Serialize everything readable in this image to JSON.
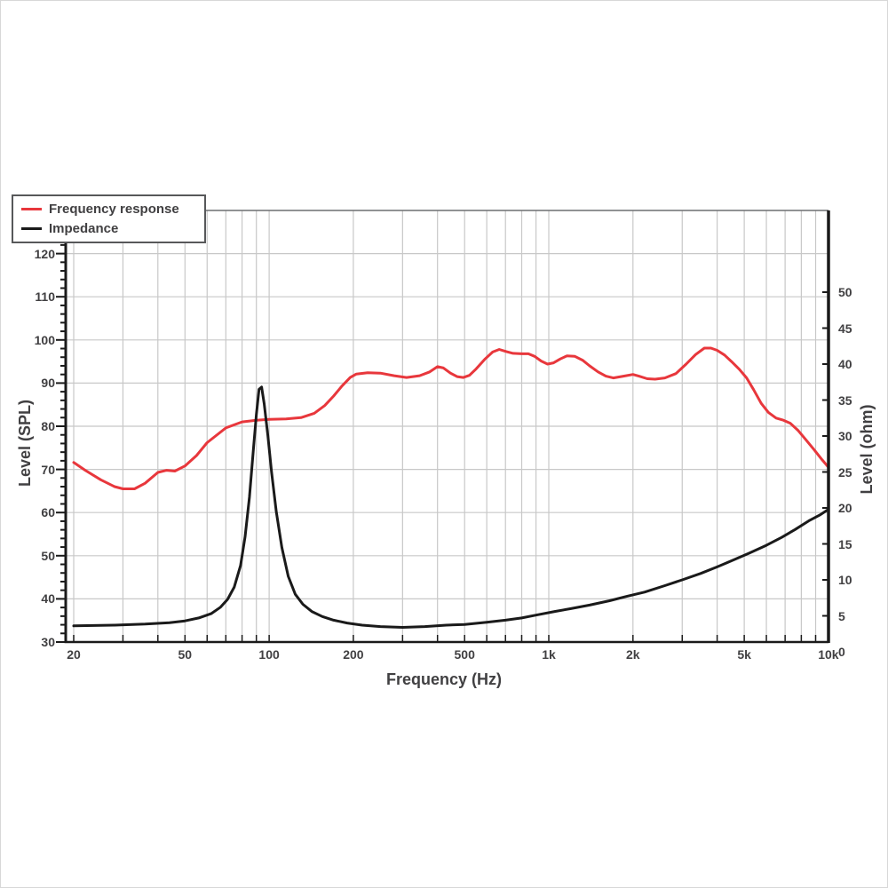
{
  "colors": {
    "frequency_response": "#e8373c",
    "impedance": "#1a1a1a",
    "grid": "#c8c8c8",
    "spine": "#1a1a1a",
    "top_frame": "#6d6e71",
    "text": "#414042"
  },
  "legend": {
    "items": [
      {
        "label": "Frequency response"
      },
      {
        "label": "Impedance"
      }
    ]
  },
  "chart_data": {
    "type": "line",
    "x_axis": {
      "label": "Frequency (Hz)",
      "scale": "log",
      "min": 20,
      "max": 10000,
      "tick_labels": [
        "20",
        "50",
        "100",
        "200",
        "500",
        "1k",
        "2k",
        "5k",
        "10k"
      ],
      "tick_values": [
        20,
        50,
        100,
        200,
        500,
        1000,
        2000,
        5000,
        10000
      ],
      "grid_values": [
        20,
        30,
        40,
        50,
        60,
        70,
        80,
        90,
        100,
        200,
        300,
        400,
        500,
        600,
        700,
        800,
        900,
        1000,
        2000,
        3000,
        4000,
        5000,
        6000,
        7000,
        8000,
        9000,
        10000
      ],
      "grid": true
    },
    "y_left": {
      "label": "Level (SPL)",
      "unit": "dB SPL",
      "min": 30,
      "max": 130,
      "tick_values": [
        120,
        110,
        100,
        90,
        80,
        70,
        60,
        50,
        40,
        30
      ],
      "minor_tick_step": 2,
      "grid": true
    },
    "y_right": {
      "label": "Level (ohm)",
      "unit": "ohm",
      "min": 0,
      "max": 55,
      "tick_values": [
        50,
        45,
        40,
        35,
        30,
        25,
        20,
        15,
        10,
        5,
        0
      ]
    },
    "series": [
      {
        "name": "Frequency response",
        "color": "#e8373c",
        "axis": "left",
        "points": [
          [
            20,
            71.6
          ],
          [
            22,
            69.8
          ],
          [
            25,
            67.6
          ],
          [
            28,
            66.0
          ],
          [
            30,
            65.5
          ],
          [
            33,
            65.5
          ],
          [
            36,
            66.8
          ],
          [
            40,
            69.3
          ],
          [
            43,
            69.8
          ],
          [
            46,
            69.6
          ],
          [
            50,
            70.8
          ],
          [
            55,
            73.2
          ],
          [
            60,
            76.2
          ],
          [
            70,
            79.6
          ],
          [
            80,
            81.0
          ],
          [
            90,
            81.4
          ],
          [
            100,
            81.6
          ],
          [
            115,
            81.7
          ],
          [
            130,
            82.0
          ],
          [
            145,
            83.0
          ],
          [
            158,
            84.8
          ],
          [
            170,
            87.0
          ],
          [
            182,
            89.3
          ],
          [
            195,
            91.3
          ],
          [
            205,
            92.1
          ],
          [
            225,
            92.4
          ],
          [
            250,
            92.3
          ],
          [
            280,
            91.7
          ],
          [
            310,
            91.3
          ],
          [
            345,
            91.7
          ],
          [
            375,
            92.6
          ],
          [
            400,
            93.8
          ],
          [
            420,
            93.5
          ],
          [
            445,
            92.3
          ],
          [
            470,
            91.5
          ],
          [
            495,
            91.3
          ],
          [
            520,
            91.8
          ],
          [
            550,
            93.3
          ],
          [
            590,
            95.5
          ],
          [
            630,
            97.2
          ],
          [
            665,
            97.8
          ],
          [
            705,
            97.3
          ],
          [
            745,
            96.9
          ],
          [
            800,
            96.8
          ],
          [
            845,
            96.8
          ],
          [
            890,
            96.2
          ],
          [
            940,
            95.1
          ],
          [
            990,
            94.4
          ],
          [
            1040,
            94.7
          ],
          [
            1100,
            95.6
          ],
          [
            1160,
            96.3
          ],
          [
            1240,
            96.2
          ],
          [
            1320,
            95.3
          ],
          [
            1400,
            94.0
          ],
          [
            1500,
            92.6
          ],
          [
            1600,
            91.6
          ],
          [
            1700,
            91.2
          ],
          [
            1850,
            91.6
          ],
          [
            2000,
            92.0
          ],
          [
            2100,
            91.6
          ],
          [
            2250,
            91.0
          ],
          [
            2400,
            90.9
          ],
          [
            2600,
            91.2
          ],
          [
            2850,
            92.2
          ],
          [
            3100,
            94.4
          ],
          [
            3350,
            96.6
          ],
          [
            3600,
            98.1
          ],
          [
            3800,
            98.1
          ],
          [
            4000,
            97.6
          ],
          [
            4250,
            96.5
          ],
          [
            4500,
            95.0
          ],
          [
            4800,
            93.2
          ],
          [
            5100,
            91.2
          ],
          [
            5400,
            88.5
          ],
          [
            5750,
            85.3
          ],
          [
            6100,
            83.2
          ],
          [
            6500,
            81.9
          ],
          [
            6900,
            81.4
          ],
          [
            7300,
            80.7
          ],
          [
            7800,
            79.0
          ],
          [
            8300,
            76.9
          ],
          [
            8900,
            74.5
          ],
          [
            9500,
            72.2
          ],
          [
            10000,
            70.5
          ]
        ]
      },
      {
        "name": "Impedance",
        "color": "#1a1a1a",
        "axis": "right",
        "points": [
          [
            20,
            3.6
          ],
          [
            28,
            3.7
          ],
          [
            36,
            3.85
          ],
          [
            44,
            4.05
          ],
          [
            50,
            4.3
          ],
          [
            56,
            4.7
          ],
          [
            62,
            5.3
          ],
          [
            67,
            6.2
          ],
          [
            71,
            7.3
          ],
          [
            75,
            9.0
          ],
          [
            79,
            12.0
          ],
          [
            82,
            16.0
          ],
          [
            85,
            21.5
          ],
          [
            88,
            28.5
          ],
          [
            90,
            33.0
          ],
          [
            92,
            36.5
          ],
          [
            94,
            36.8
          ],
          [
            96,
            34.5
          ],
          [
            99,
            30.0
          ],
          [
            102,
            25.0
          ],
          [
            106,
            19.5
          ],
          [
            111,
            14.5
          ],
          [
            117,
            10.5
          ],
          [
            124,
            8.0
          ],
          [
            132,
            6.6
          ],
          [
            142,
            5.6
          ],
          [
            155,
            4.9
          ],
          [
            170,
            4.4
          ],
          [
            190,
            4.0
          ],
          [
            215,
            3.7
          ],
          [
            250,
            3.5
          ],
          [
            300,
            3.4
          ],
          [
            360,
            3.5
          ],
          [
            430,
            3.7
          ],
          [
            500,
            3.8
          ],
          [
            600,
            4.1
          ],
          [
            700,
            4.4
          ],
          [
            800,
            4.7
          ],
          [
            900,
            5.1
          ],
          [
            1050,
            5.6
          ],
          [
            1200,
            6.0
          ],
          [
            1400,
            6.5
          ],
          [
            1650,
            7.1
          ],
          [
            1900,
            7.7
          ],
          [
            2200,
            8.3
          ],
          [
            2600,
            9.2
          ],
          [
            3000,
            10.0
          ],
          [
            3500,
            10.9
          ],
          [
            4000,
            11.8
          ],
          [
            4600,
            12.8
          ],
          [
            5200,
            13.7
          ],
          [
            6000,
            14.8
          ],
          [
            6800,
            15.9
          ],
          [
            7600,
            17.0
          ],
          [
            8500,
            18.2
          ],
          [
            9300,
            19.0
          ],
          [
            10000,
            19.8
          ]
        ]
      }
    ]
  }
}
